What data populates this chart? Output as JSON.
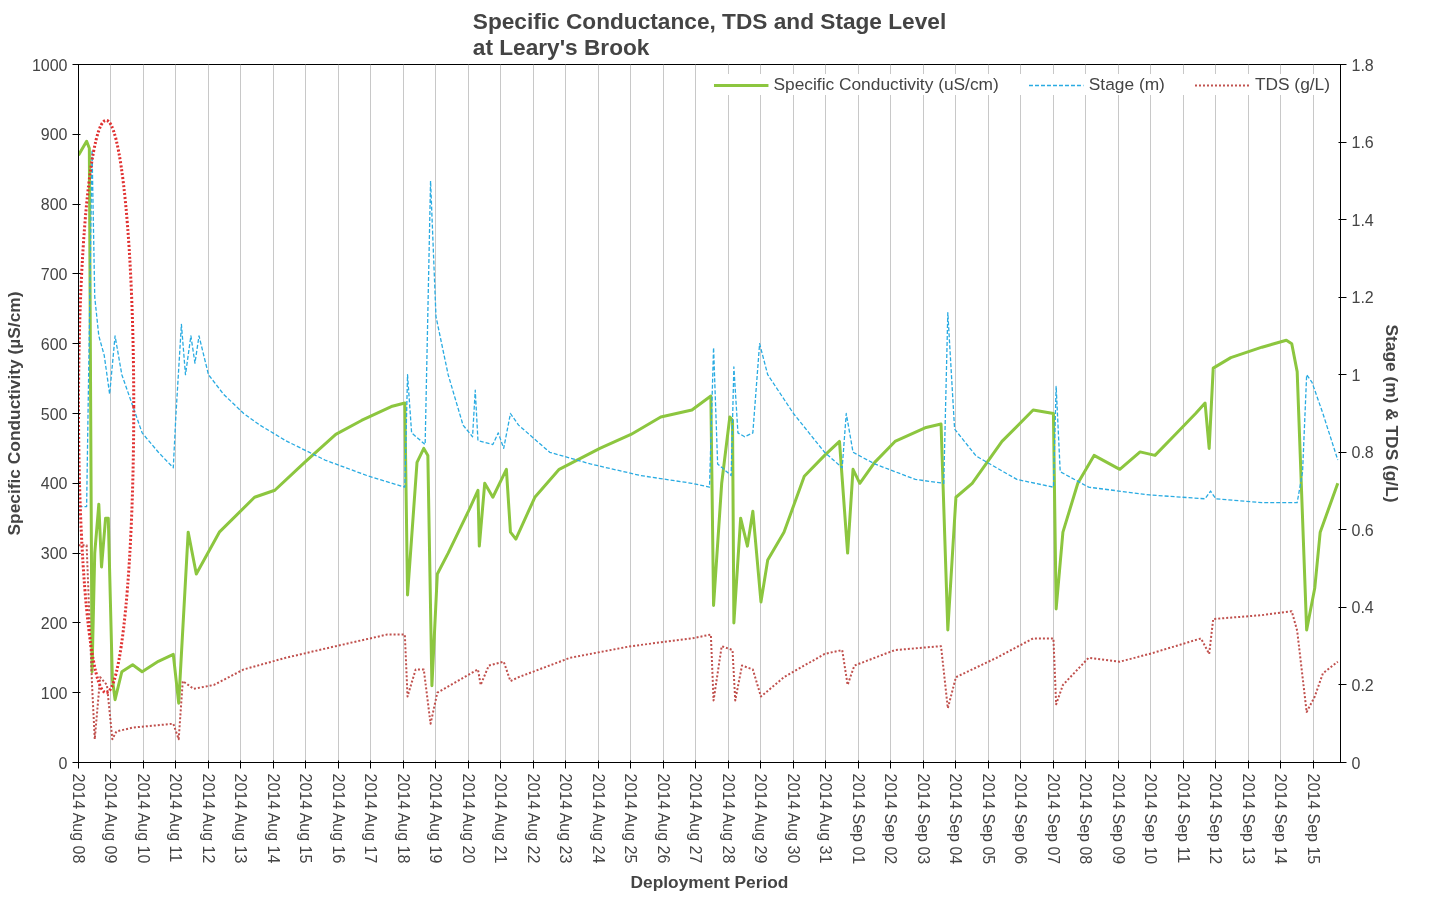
{
  "chart_data": {
    "type": "line",
    "title": "Specific Conductance, TDS and Stage Level\nat Leary's Brook",
    "xlabel": "Deployment Period",
    "ylabel": "Specific Conductivity (µS/cm)",
    "y2label": "Stage (m) & TDS (g/L)",
    "xlim": [
      "2014-08-08T00:00",
      "2014-09-15T20:00"
    ],
    "xticks": [
      {
        "value": "2014-08-08",
        "label": "2014 Aug 08"
      },
      {
        "value": "2014-08-09",
        "label": "2014 Aug 09"
      },
      {
        "value": "2014-08-10",
        "label": "2014 Aug 10"
      },
      {
        "value": "2014-08-11",
        "label": "2014 Aug 11"
      },
      {
        "value": "2014-08-12",
        "label": "2014 Aug 12"
      },
      {
        "value": "2014-08-13",
        "label": "2014 Aug 13"
      },
      {
        "value": "2014-08-14",
        "label": "2014 Aug 14"
      },
      {
        "value": "2014-08-15",
        "label": "2014 Aug 15"
      },
      {
        "value": "2014-08-16",
        "label": "2014 Aug 16"
      },
      {
        "value": "2014-08-17",
        "label": "2014 Aug 17"
      },
      {
        "value": "2014-08-18",
        "label": "2014 Aug 18"
      },
      {
        "value": "2014-08-19",
        "label": "2014 Aug 19"
      },
      {
        "value": "2014-08-20",
        "label": "2014 Aug 20"
      },
      {
        "value": "2014-08-21",
        "label": "2014 Aug 21"
      },
      {
        "value": "2014-08-22",
        "label": "2014 Aug 22"
      },
      {
        "value": "2014-08-23",
        "label": "2014 Aug 23"
      },
      {
        "value": "2014-08-24",
        "label": "2014 Aug 24"
      },
      {
        "value": "2014-08-25",
        "label": "2014 Aug 25"
      },
      {
        "value": "2014-08-26",
        "label": "2014 Aug 26"
      },
      {
        "value": "2014-08-27",
        "label": "2014 Aug 27"
      },
      {
        "value": "2014-08-28",
        "label": "2014 Aug 28"
      },
      {
        "value": "2014-08-29",
        "label": "2014 Aug 29"
      },
      {
        "value": "2014-08-30",
        "label": "2014 Aug 30"
      },
      {
        "value": "2014-08-31",
        "label": "2014 Aug 31"
      },
      {
        "value": "2014-09-01",
        "label": "2014 Sep 01"
      },
      {
        "value": "2014-09-02",
        "label": "2014 Sep 02"
      },
      {
        "value": "2014-09-03",
        "label": "2014 Sep 03"
      },
      {
        "value": "2014-09-04",
        "label": "2014 Sep 04"
      },
      {
        "value": "2014-09-05",
        "label": "2014 Sep 05"
      },
      {
        "value": "2014-09-06",
        "label": "2014 Sep 06"
      },
      {
        "value": "2014-09-07",
        "label": "2014 Sep 07"
      },
      {
        "value": "2014-09-08",
        "label": "2014 Sep 08"
      },
      {
        "value": "2014-09-09",
        "label": "2014 Sep 09"
      },
      {
        "value": "2014-09-10",
        "label": "2014 Sep 10"
      },
      {
        "value": "2014-09-11",
        "label": "2014 Sep 11"
      },
      {
        "value": "2014-09-12",
        "label": "2014 Sep 12"
      },
      {
        "value": "2014-09-13",
        "label": "2014 Sep 13"
      },
      {
        "value": "2014-09-14",
        "label": "2014 Sep 14"
      },
      {
        "value": "2014-09-15",
        "label": "2014 Sep 15"
      }
    ],
    "ylim": [
      0,
      1000
    ],
    "yticks": [
      0,
      100,
      200,
      300,
      400,
      500,
      600,
      700,
      800,
      900,
      1000
    ],
    "y2lim": [
      0,
      1.8
    ],
    "y2ticks": [
      0,
      0.2,
      0.4,
      0.6,
      0.8,
      1,
      1.2,
      1.4,
      1.6,
      1.8
    ],
    "grid": "x",
    "legend": "top right",
    "series": [
      {
        "name": "Specific Conductivity (uS/cm)",
        "color": "#8cc63f",
        "line_style": "solid",
        "x": [
          "2014-08-08T00:00",
          "2014-08-08T06:00",
          "2014-08-08T08:00",
          "2014-08-08T10:00",
          "2014-08-08T12:00",
          "2014-08-08T15:00",
          "2014-08-08T17:00",
          "2014-08-08T20:00",
          "2014-08-08T22:00",
          "2014-08-09T01:00",
          "2014-08-09T03:00",
          "2014-08-09T08:00",
          "2014-08-09T16:00",
          "2014-08-09T23:00",
          "2014-08-10T11:00",
          "2014-08-10T22:00",
          "2014-08-11T02:00",
          "2014-08-11T09:00",
          "2014-08-11T15:00",
          "2014-08-12T08:00",
          "2014-08-13T10:00",
          "2014-08-14T01:00",
          "2014-08-14T23:00",
          "2014-08-15T22:00",
          "2014-08-16T17:00",
          "2014-08-17T15:00",
          "2014-08-18T01:00",
          "2014-08-18T03:00",
          "2014-08-18T10:00",
          "2014-08-18T15:00",
          "2014-08-18T18:00",
          "2014-08-18T21:00",
          "2014-08-19T01:00",
          "2014-08-19T09:00",
          "2014-08-20T00:00",
          "2014-08-20T07:00",
          "2014-08-20T08:00",
          "2014-08-20T12:00",
          "2014-08-20T18:00",
          "2014-08-21T04:00",
          "2014-08-21T07:00",
          "2014-08-21T11:00",
          "2014-08-22T01:00",
          "2014-08-22T19:00",
          "2014-08-24T01:00",
          "2014-08-25T00:00",
          "2014-08-25T22:00",
          "2014-08-26T21:00",
          "2014-08-27T11:00",
          "2014-08-27T13:00",
          "2014-08-27T19:00",
          "2014-08-28T01:00",
          "2014-08-28T03:00",
          "2014-08-28T04:00",
          "2014-08-28T09:00",
          "2014-08-28T14:00",
          "2014-08-28T18:00",
          "2014-08-29T00:00",
          "2014-08-29T05:00",
          "2014-08-29T17:00",
          "2014-08-30T08:00",
          "2014-08-30T23:00",
          "2014-08-31T10:00",
          "2014-08-31T16:00",
          "2014-08-31T20:00",
          "2014-09-01T01:00",
          "2014-09-01T12:00",
          "2014-09-02T03:00",
          "2014-09-03T02:00",
          "2014-09-03T13:00",
          "2014-09-03T18:00",
          "2014-09-04T00:00",
          "2014-09-04T12:00",
          "2014-09-05T10:00",
          "2014-09-06T09:00",
          "2014-09-07T00:00",
          "2014-09-07T02:00",
          "2014-09-07T07:00",
          "2014-09-07T18:00",
          "2014-09-08T06:00",
          "2014-09-09T01:00",
          "2014-09-09T16:00",
          "2014-09-10T03:00",
          "2014-09-10T18:00",
          "2014-09-11T09:00",
          "2014-09-11T16:00",
          "2014-09-11T19:00",
          "2014-09-11T22:00",
          "2014-09-12T11:00",
          "2014-09-13T10:00",
          "2014-09-14T04:00",
          "2014-09-14T08:00",
          "2014-09-14T12:00",
          "2014-09-14T19:00",
          "2014-09-15T01:00",
          "2014-09-15T05:00",
          "2014-09-15T18:00"
        ],
        "values": [
          870,
          890,
          880,
          130,
          300,
          370,
          280,
          350,
          350,
          120,
          90,
          130,
          140,
          130,
          145,
          155,
          85,
          330,
          270,
          330,
          380,
          390,
          430,
          470,
          490,
          510,
          515,
          240,
          430,
          450,
          440,
          110,
          270,
          300,
          360,
          390,
          310,
          400,
          380,
          420,
          330,
          320,
          380,
          420,
          450,
          470,
          495,
          505,
          525,
          225,
          400,
          495,
          490,
          200,
          350,
          310,
          360,
          230,
          290,
          330,
          410,
          440,
          460,
          300,
          420,
          400,
          430,
          460,
          480,
          485,
          190,
          380,
          400,
          460,
          505,
          500,
          220,
          330,
          400,
          440,
          420,
          445,
          440,
          470,
          500,
          515,
          450,
          565,
          580,
          595,
          605,
          600,
          560,
          190,
          250,
          330,
          400
        ]
      },
      {
        "name": "Stage (m)",
        "color": "#29abe2",
        "line_style": "dashed",
        "axis": "y2",
        "x": [
          "2014-08-08T00:00",
          "2014-08-08T06:00",
          "2014-08-08T10:00",
          "2014-08-08T12:00",
          "2014-08-08T15:00",
          "2014-08-08T19:00",
          "2014-08-08T23:00",
          "2014-08-09T03:00",
          "2014-08-09T08:00",
          "2014-08-09T16:00",
          "2014-08-09T23:00",
          "2014-08-10T11:00",
          "2014-08-10T22:00",
          "2014-08-11T00:00",
          "2014-08-11T04:00",
          "2014-08-11T07:00",
          "2014-08-11T11:00",
          "2014-08-11T14:00",
          "2014-08-11T17:00",
          "2014-08-12T00:00",
          "2014-08-12T11:00",
          "2014-08-13T02:00",
          "2014-08-13T14:00",
          "2014-08-14T09:00",
          "2014-08-15T14:00",
          "2014-08-16T21:00",
          "2014-08-18T01:00",
          "2014-08-18T03:00",
          "2014-08-18T06:00",
          "2014-08-18T16:00",
          "2014-08-18T20:00",
          "2014-08-19T00:00",
          "2014-08-19T09:00",
          "2014-08-19T20:00",
          "2014-08-20T03:00",
          "2014-08-20T05:00",
          "2014-08-20T07:00",
          "2014-08-20T18:00",
          "2014-08-20T22:00",
          "2014-08-21T02:00",
          "2014-08-21T07:00",
          "2014-08-21T13:00",
          "2014-08-22T12:00",
          "2014-08-23T18:00",
          "2014-08-25T07:00",
          "2014-08-26T21:00",
          "2014-08-27T10:00",
          "2014-08-27T13:00",
          "2014-08-27T16:00",
          "2014-08-28T02:00",
          "2014-08-28T04:00",
          "2014-08-28T07:00",
          "2014-08-28T12:00",
          "2014-08-28T18:00",
          "2014-08-28T23:00",
          "2014-08-29T05:00",
          "2014-08-30T00:00",
          "2014-08-30T23:00",
          "2014-08-31T12:00",
          "2014-08-31T15:00",
          "2014-08-31T20:00",
          "2014-09-01T12:00",
          "2014-09-02T18:00",
          "2014-09-03T15:00",
          "2014-09-03T18:00",
          "2014-09-03T23:00",
          "2014-09-04T15:00",
          "2014-09-05T21:00",
          "2014-09-07T00:00",
          "2014-09-07T02:00",
          "2014-09-07T05:00",
          "2014-09-08T02:00",
          "2014-09-09T23:00",
          "2014-09-11T16:00",
          "2014-09-11T20:00",
          "2014-09-12T00:00",
          "2014-09-13T10:00",
          "2014-09-14T12:00",
          "2014-09-14T16:00",
          "2014-09-14T19:00",
          "2014-09-14T23:00",
          "2014-09-15T07:00",
          "2014-09-15T18:00"
        ],
        "values": [
          0.66,
          0.66,
          1.58,
          1.2,
          1.1,
          1.05,
          0.95,
          1.1,
          1.0,
          0.92,
          0.85,
          0.8,
          0.76,
          0.9,
          1.13,
          1.0,
          1.1,
          1.03,
          1.1,
          1.0,
          0.95,
          0.9,
          0.87,
          0.83,
          0.78,
          0.74,
          0.71,
          1.0,
          0.85,
          0.82,
          1.5,
          1.15,
          1.0,
          0.87,
          0.84,
          0.96,
          0.83,
          0.82,
          0.85,
          0.81,
          0.9,
          0.87,
          0.8,
          0.77,
          0.74,
          0.72,
          0.71,
          1.07,
          0.77,
          0.74,
          1.02,
          0.85,
          0.84,
          0.85,
          1.08,
          1.0,
          0.9,
          0.8,
          0.76,
          0.9,
          0.8,
          0.77,
          0.73,
          0.72,
          1.16,
          0.86,
          0.79,
          0.73,
          0.71,
          0.97,
          0.75,
          0.71,
          0.69,
          0.68,
          0.7,
          0.68,
          0.67,
          0.67,
          0.75,
          1.0,
          0.98,
          0.9,
          0.78
        ]
      },
      {
        "name": "TDS (g/L)",
        "color": "#c0504d",
        "line_style": "dotted",
        "axis": "y2",
        "x": [
          "2014-08-08T00:00",
          "2014-08-08T06:00",
          "2014-08-08T10:00",
          "2014-08-08T12:00",
          "2014-08-08T16:00",
          "2014-08-08T21:00",
          "2014-08-09T01:00",
          "2014-08-09T04:00",
          "2014-08-09T16:00",
          "2014-08-10T22:00",
          "2014-08-11T02:00",
          "2014-08-11T05:00",
          "2014-08-11T13:00",
          "2014-08-12T04:00",
          "2014-08-13T02:00",
          "2014-08-14T09:00",
          "2014-08-15T22:00",
          "2014-08-17T12:00",
          "2014-08-18T01:00",
          "2014-08-18T03:00",
          "2014-08-18T09:00",
          "2014-08-18T15:00",
          "2014-08-18T20:00",
          "2014-08-19T01:00",
          "2014-08-19T16:00",
          "2014-08-20T07:00",
          "2014-08-20T09:00",
          "2014-08-20T15:00",
          "2014-08-21T02:00",
          "2014-08-21T07:00",
          "2014-08-21T13:00",
          "2014-08-23T03:00",
          "2014-08-25T00:00",
          "2014-08-26T21:00",
          "2014-08-27T11:00",
          "2014-08-27T13:00",
          "2014-08-27T19:00",
          "2014-08-28T03:00",
          "2014-08-28T05:00",
          "2014-08-28T10:00",
          "2014-08-28T18:00",
          "2014-08-29T00:00",
          "2014-08-29T17:00",
          "2014-08-30T23:00",
          "2014-08-31T12:00",
          "2014-08-31T16:00",
          "2014-08-31T21:00",
          "2014-09-02T03:00",
          "2014-09-03T13:00",
          "2014-09-03T18:00",
          "2014-09-04T00:00",
          "2014-09-05T06:00",
          "2014-09-06T09:00",
          "2014-09-07T00:00",
          "2014-09-07T02:00",
          "2014-09-07T07:00",
          "2014-09-08T02:00",
          "2014-09-09T01:00",
          "2014-09-09T23:00",
          "2014-09-11T13:00",
          "2014-09-11T19:00",
          "2014-09-11T22:00",
          "2014-09-13T10:00",
          "2014-09-14T08:00",
          "2014-09-14T12:00",
          "2014-09-14T19:00",
          "2014-09-15T01:00",
          "2014-09-15T07:00",
          "2014-09-15T18:00"
        ],
        "values": [
          0.56,
          0.56,
          0.2,
          0.06,
          0.22,
          0.2,
          0.06,
          0.08,
          0.09,
          0.1,
          0.06,
          0.21,
          0.19,
          0.2,
          0.24,
          0.27,
          0.3,
          0.33,
          0.33,
          0.17,
          0.24,
          0.24,
          0.1,
          0.18,
          0.21,
          0.24,
          0.2,
          0.25,
          0.26,
          0.21,
          0.22,
          0.27,
          0.3,
          0.32,
          0.33,
          0.16,
          0.3,
          0.29,
          0.16,
          0.25,
          0.24,
          0.17,
          0.22,
          0.28,
          0.29,
          0.2,
          0.25,
          0.29,
          0.3,
          0.14,
          0.22,
          0.27,
          0.32,
          0.32,
          0.15,
          0.2,
          0.27,
          0.26,
          0.28,
          0.32,
          0.28,
          0.37,
          0.38,
          0.39,
          0.34,
          0.13,
          0.17,
          0.23,
          0.26
        ]
      }
    ]
  }
}
